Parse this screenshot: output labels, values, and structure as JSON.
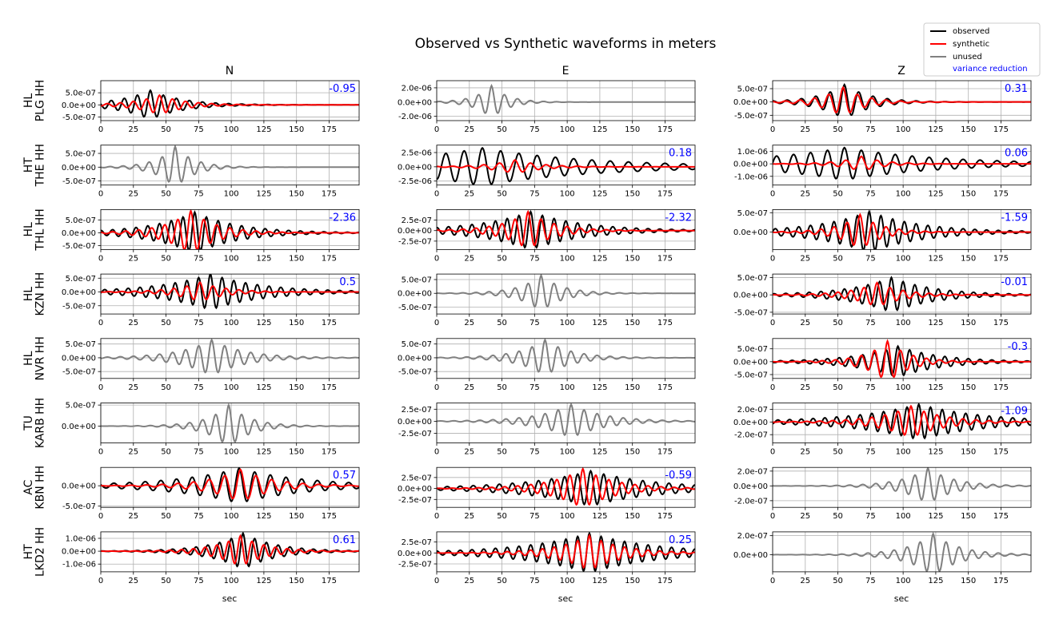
{
  "figure": {
    "title": "Observed vs Synthetic waveforms in meters",
    "columns": [
      "N",
      "E",
      "Z"
    ],
    "xlabel": "sec"
  },
  "legend": {
    "placement": "top-right",
    "entries": [
      {
        "label": "observed",
        "color": "#000000"
      },
      {
        "label": "synthetic",
        "color": "#ff0000"
      },
      {
        "label": "unused",
        "color": "#808080"
      },
      {
        "label": "variance reduction",
        "color": "#0000ff",
        "text_only": true
      }
    ]
  },
  "colors": {
    "observed": "#000000",
    "synthetic": "#ff0000",
    "unused": "#808080",
    "variance_reduction": "#0000ff",
    "grid": "#b0b0b0"
  },
  "chart_data": {
    "type": "line",
    "x_range": [
      0,
      198
    ],
    "x_ticks": [
      0,
      25,
      50,
      75,
      100,
      125,
      150,
      175
    ],
    "grid": true,
    "rows": [
      {
        "network": "HL",
        "station": "PLG HH",
        "N": {
          "used": true,
          "vr": "-0.95",
          "ylim": [
            -6.5e-07,
            1e-06
          ],
          "yticks": [
            "5.0e-07",
            "0.0e+00",
            "-5.0e-07"
          ],
          "ytick_values": [
            5e-07,
            0,
            -5e-07
          ],
          "observed": {
            "amp": 6e-07,
            "t0": 38,
            "period": 10,
            "decay": 0.04
          },
          "synthetic": {
            "amp": 4e-07,
            "t0": 45,
            "period": 10,
            "decay": 0.05
          }
        },
        "E": {
          "used": false,
          "ylim": [
            -2.6e-06,
            3e-06
          ],
          "yticks": [
            "2.0e-06",
            "0.0e+00",
            "-2.0e-06"
          ],
          "ytick_values": [
            2e-06,
            0,
            -2e-06
          ],
          "observed": {
            "amp": 2.3e-06,
            "t0": 42,
            "period": 10,
            "decay": 0.08
          }
        },
        "Z": {
          "used": true,
          "vr": "0.31",
          "ylim": [
            -7e-07,
            8e-07
          ],
          "yticks": [
            "5.0e-07",
            "0.0e+00",
            "-5.0e-07"
          ],
          "ytick_values": [
            5e-07,
            0,
            -5e-07
          ],
          "observed": {
            "amp": 6.5e-07,
            "t0": 55,
            "period": 11,
            "decay": 0.05
          },
          "synthetic": {
            "amp": 5.5e-07,
            "t0": 54,
            "period": 11,
            "decay": 0.06
          }
        }
      },
      {
        "network": "HT",
        "station": "THE HH",
        "N": {
          "used": false,
          "ylim": [
            -6.5e-07,
            8e-07
          ],
          "yticks": [
            "5.0e-07",
            "0.0e+00",
            "-5.0e-07"
          ],
          "ytick_values": [
            5e-07,
            0,
            -5e-07
          ],
          "observed": {
            "amp": 7.5e-07,
            "t0": 57,
            "period": 10,
            "decay": 0.07
          }
        },
        "E": {
          "used": true,
          "vr": "0.18",
          "ylim": [
            -3.2e-06,
            3.8e-06
          ],
          "yticks": [
            "2.5e-06",
            "0.0e+00",
            "-2.5e-06"
          ],
          "ytick_values": [
            2.5e-06,
            0,
            -2.5e-06
          ],
          "observed": {
            "amp": 3.3e-06,
            "t0": 35,
            "period": 14,
            "decay": 0.012
          },
          "synthetic": {
            "amp": 1.2e-06,
            "t0": 60,
            "period": 12,
            "decay": 0.05
          }
        },
        "Z": {
          "used": true,
          "vr": "0.06",
          "ylim": [
            -1.7e-06,
            1.5e-06
          ],
          "yticks": [
            "1.0e-06",
            "0.0e+00",
            "-1.0e-06"
          ],
          "ytick_values": [
            1e-06,
            0,
            -1e-06
          ],
          "observed": {
            "amp": 1.3e-06,
            "t0": 55,
            "period": 13,
            "decay": 0.014
          },
          "synthetic": {
            "amp": 6e-07,
            "t0": 68,
            "period": 12,
            "decay": 0.06
          }
        }
      },
      {
        "network": "HL",
        "station": "THL HH",
        "N": {
          "used": true,
          "vr": "-2.36",
          "ylim": [
            -6.5e-07,
            9e-07
          ],
          "yticks": [
            "5.0e-07",
            "0.0e+00",
            "-5.0e-07"
          ],
          "ytick_values": [
            5e-07,
            0,
            -5e-07
          ],
          "observed": {
            "amp": 8e-07,
            "t0": 72,
            "period": 9,
            "decay": 0.03
          },
          "synthetic": {
            "amp": 8.5e-07,
            "t0": 69,
            "period": 10,
            "decay": 0.05
          }
        },
        "E": {
          "used": true,
          "vr": "-2.32",
          "ylim": [
            -4.5e-07,
            5e-07
          ],
          "yticks": [
            "2.5e-07",
            "0.0e+00",
            "-2.5e-07"
          ],
          "ytick_values": [
            2.5e-07,
            0,
            -2.5e-07
          ],
          "observed": {
            "amp": 4.5e-07,
            "t0": 72,
            "period": 9,
            "decay": 0.025
          },
          "synthetic": {
            "amp": 4.5e-07,
            "t0": 70,
            "period": 10,
            "decay": 0.05
          }
        },
        "Z": {
          "used": true,
          "vr": "-1.59",
          "ylim": [
            -4.5e-07,
            5.8e-07
          ],
          "yticks": [
            "5.0e-07",
            "0.0e+00"
          ],
          "ytick_values": [
            5e-07,
            0
          ],
          "observed": {
            "amp": 5.3e-07,
            "t0": 74,
            "period": 9,
            "decay": 0.025
          },
          "synthetic": {
            "amp": 4.5e-07,
            "t0": 67,
            "period": 10,
            "decay": 0.06
          }
        }
      },
      {
        "network": "HL",
        "station": "KZN HH",
        "N": {
          "used": true,
          "vr": "0.5",
          "ylim": [
            -8e-07,
            6.5e-07
          ],
          "yticks": [
            "5.0e-07",
            "0.0e+00",
            "-5.0e-07"
          ],
          "ytick_values": [
            5e-07,
            0,
            -5e-07
          ],
          "observed": {
            "amp": 6.5e-07,
            "t0": 84,
            "period": 9,
            "decay": 0.025
          },
          "synthetic": {
            "amp": 3.5e-07,
            "t0": 76,
            "period": 10,
            "decay": 0.05
          }
        },
        "E": {
          "used": false,
          "ylim": [
            -7.5e-07,
            7e-07
          ],
          "yticks": [
            "5.0e-07",
            "0.0e+00",
            "-5.0e-07"
          ],
          "ytick_values": [
            5e-07,
            0,
            -5e-07
          ],
          "observed": {
            "amp": 6.5e-07,
            "t0": 80,
            "period": 10,
            "decay": 0.06
          }
        },
        "Z": {
          "used": true,
          "vr": "-0.01",
          "ylim": [
            -5.5e-07,
            6e-07
          ],
          "yticks": [
            "5.0e-07",
            "0.0e+00",
            "-5.0e-07"
          ],
          "ytick_values": [
            5e-07,
            0,
            -5e-07
          ],
          "observed": {
            "amp": 5e-07,
            "t0": 91,
            "period": 9,
            "decay": 0.03
          },
          "synthetic": {
            "amp": 3.5e-07,
            "t0": 80,
            "period": 10,
            "decay": 0.05
          }
        }
      },
      {
        "network": "HL",
        "station": "NVR HH",
        "N": {
          "used": false,
          "ylim": [
            -7.5e-07,
            7e-07
          ],
          "yticks": [
            "5.0e-07",
            "0.0e+00",
            "-5.0e-07"
          ],
          "ytick_values": [
            5e-07,
            0,
            -5e-07
          ],
          "observed": {
            "amp": 6.5e-07,
            "t0": 85,
            "period": 10,
            "decay": 0.04
          }
        },
        "E": {
          "used": false,
          "ylim": [
            -7.5e-07,
            7e-07
          ],
          "yticks": [
            "5.0e-07",
            "0.0e+00",
            "-5.0e-07"
          ],
          "ytick_values": [
            5e-07,
            0,
            -5e-07
          ],
          "observed": {
            "amp": 6.5e-07,
            "t0": 83,
            "period": 10,
            "decay": 0.05
          }
        },
        "Z": {
          "used": true,
          "vr": "-0.3",
          "ylim": [
            -6.5e-07,
            9e-07
          ],
          "yticks": [
            "5.0e-07",
            "0.0e+00",
            "-5.0e-07"
          ],
          "ytick_values": [
            5e-07,
            0,
            -5e-07
          ],
          "observed": {
            "amp": 6e-07,
            "t0": 96,
            "period": 9,
            "decay": 0.03
          },
          "synthetic": {
            "amp": 8e-07,
            "t0": 88,
            "period": 10,
            "decay": 0.06
          }
        }
      },
      {
        "network": "TU",
        "station": "KARB HH",
        "N": {
          "used": false,
          "ylim": [
            -4e-07,
            5.5e-07
          ],
          "yticks": [
            "5.0e-07",
            "0.0e+00"
          ],
          "ytick_values": [
            5e-07,
            0
          ],
          "observed": {
            "amp": 5e-07,
            "t0": 98,
            "period": 10,
            "decay": 0.06
          }
        },
        "E": {
          "used": false,
          "ylim": [
            -4.5e-07,
            3.8e-07
          ],
          "yticks": [
            "2.5e-07",
            "0.0e+00",
            "-2.5e-07"
          ],
          "ytick_values": [
            2.5e-07,
            0,
            -2.5e-07
          ],
          "observed": {
            "amp": 3.5e-07,
            "t0": 103,
            "period": 10,
            "decay": 0.04
          }
        },
        "Z": {
          "used": true,
          "vr": "-1.09",
          "ylim": [
            -3.3e-07,
            3e-07
          ],
          "yticks": [
            "2.0e-07",
            "0.0e+00",
            "-2.0e-07"
          ],
          "ytick_values": [
            2e-07,
            0,
            -2e-07
          ],
          "observed": {
            "amp": 2.8e-07,
            "t0": 112,
            "period": 9,
            "decay": 0.02
          },
          "synthetic": {
            "amp": 2.5e-07,
            "t0": 106,
            "period": 10,
            "decay": 0.04
          }
        }
      },
      {
        "network": "AC",
        "station": "KBN HH",
        "N": {
          "used": true,
          "vr": "0.57",
          "ylim": [
            -5.3e-07,
            4.5e-07
          ],
          "yticks": [
            "0.0e+00",
            "-5.0e-07"
          ],
          "ytick_values": [
            0,
            -5e-07
          ],
          "observed": {
            "amp": 4.3e-07,
            "t0": 106,
            "period": 12,
            "decay": 0.02
          },
          "synthetic": {
            "amp": 4e-07,
            "t0": 107,
            "period": 12,
            "decay": 0.04
          }
        },
        "E": {
          "used": true,
          "vr": "-0.59",
          "ylim": [
            -4.3e-07,
            4.8e-07
          ],
          "yticks": [
            "2.5e-07",
            "0.0e+00",
            "-2.5e-07"
          ],
          "ytick_values": [
            2.5e-07,
            0,
            -2.5e-07
          ],
          "observed": {
            "amp": 4e-07,
            "t0": 118,
            "period": 10,
            "decay": 0.02
          },
          "synthetic": {
            "amp": 4.5e-07,
            "t0": 112,
            "period": 10,
            "decay": 0.04
          }
        },
        "Z": {
          "used": false,
          "ylim": [
            -2.9e-07,
            2.5e-07
          ],
          "yticks": [
            "2.0e-07",
            "0.0e+00",
            "-2.0e-07"
          ],
          "ytick_values": [
            2e-07,
            0,
            -2e-07
          ],
          "observed": {
            "amp": 2.4e-07,
            "t0": 119,
            "period": 10,
            "decay": 0.05
          }
        }
      },
      {
        "network": "HT",
        "station": "LKD2 HH",
        "N": {
          "used": true,
          "vr": "0.61",
          "ylim": [
            -1.6e-06,
            1.5e-06
          ],
          "yticks": [
            "1.0e-06",
            "0.0e+00",
            "-1.0e-06"
          ],
          "ytick_values": [
            1e-06,
            0,
            -1e-06
          ],
          "observed": {
            "amp": 1.4e-06,
            "t0": 109,
            "period": 9,
            "decay": 0.04
          },
          "synthetic": {
            "amp": 1.2e-06,
            "t0": 107,
            "period": 9,
            "decay": 0.05
          }
        },
        "E": {
          "used": true,
          "vr": "0.25",
          "ylim": [
            -4.3e-07,
            4.8e-07
          ],
          "yticks": [
            "2.5e-07",
            "0.0e+00",
            "-2.5e-07"
          ],
          "ytick_values": [
            2.5e-07,
            0,
            -2.5e-07
          ],
          "observed": {
            "amp": 4.5e-07,
            "t0": 117,
            "period": 9,
            "decay": 0.02
          },
          "synthetic": {
            "amp": 4e-07,
            "t0": 117,
            "period": 9,
            "decay": 0.04
          }
        },
        "Z": {
          "used": false,
          "ylim": [
            -1.8e-07,
            2.4e-07
          ],
          "yticks": [
            "2.0e-07",
            "0.0e+00"
          ],
          "ytick_values": [
            2e-07,
            0
          ],
          "observed": {
            "amp": 2.2e-07,
            "t0": 123,
            "period": 10,
            "decay": 0.05
          }
        }
      }
    ]
  }
}
